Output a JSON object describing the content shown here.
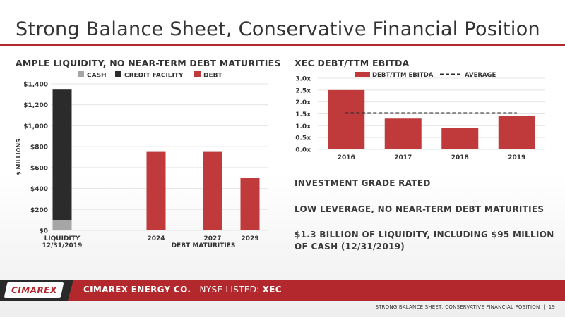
{
  "header": {
    "title": "Strong Balance Sheet, Conservative Financial Position"
  },
  "left": {
    "subtitle": "AMPLE LIQUIDITY, NO NEAR-TERM DEBT MATURITIES"
  },
  "right": {
    "subtitle": "XEC DEBT/TTM EBITDA",
    "bullets": [
      "INVESTMENT GRADE RATED",
      "LOW LEVERAGE, NO NEAR-TERM DEBT MATURITIES",
      "$1.3 BILLION OF LIQUIDITY, INCLUDING $95 MILLION OF CASH (12/31/2019)"
    ]
  },
  "colors": {
    "red": "#c0393b",
    "black": "#2b2b2b",
    "gray": "#a6a6a6",
    "accent": "#b3282d"
  },
  "chart_data": [
    {
      "type": "bar",
      "stacked": true,
      "ylabel": "$ MILLIONS",
      "xlabel": "DEBT MATURITIES",
      "ylim": [
        0,
        1400
      ],
      "yticks": [
        "$0",
        "$200",
        "$400",
        "$600",
        "$800",
        "$1,000",
        "$1,200",
        "$1,400"
      ],
      "ytick_values": [
        0,
        200,
        400,
        600,
        800,
        1000,
        1200,
        1400
      ],
      "grid": true,
      "legend": [
        "CASH",
        "CREDIT FACILITY",
        "DEBT"
      ],
      "categories": [
        "LIQUIDITY\n12/31/2019",
        "2024",
        "2027",
        "2029"
      ],
      "category_lines": [
        [
          "LIQUIDITY",
          "12/31/2019"
        ],
        [
          "2024"
        ],
        [
          "2027"
        ],
        [
          "2029"
        ]
      ],
      "series": [
        {
          "name": "CASH",
          "color": "#a6a6a6",
          "values": [
            95,
            0,
            0,
            0
          ]
        },
        {
          "name": "CREDIT FACILITY",
          "color": "#2b2b2b",
          "values": [
            1250,
            0,
            0,
            0
          ]
        },
        {
          "name": "DEBT",
          "color": "#c0393b",
          "values": [
            0,
            750,
            750,
            500
          ]
        }
      ]
    },
    {
      "type": "bar",
      "title": "XEC DEBT/TTM EBITDA",
      "ylim": [
        0,
        3.0
      ],
      "yticks": [
        "0.0x",
        "0.5x",
        "1.0x",
        "1.5x",
        "2.0x",
        "2.5x",
        "3.0x"
      ],
      "ytick_values": [
        0,
        0.5,
        1.0,
        1.5,
        2.0,
        2.5,
        3.0
      ],
      "grid": true,
      "categories": [
        "2016",
        "2017",
        "2018",
        "2019"
      ],
      "series": [
        {
          "name": "DEBT/TTM EBITDA",
          "color": "#c0393b",
          "values": [
            2.5,
            1.3,
            0.9,
            1.4
          ]
        }
      ],
      "average": {
        "name": "AVERAGE",
        "value": 1.53
      }
    }
  ],
  "footer": {
    "logo": "CIMAREX",
    "company": "CIMAREX ENERGY CO.",
    "listed": "NYSE LISTED:",
    "ticker": "XEC",
    "page_label": "STRONG BALANCE SHEET, CONSERVATIVE FINANCIAL POSITION",
    "page_sep": "|",
    "page_number": "19"
  }
}
